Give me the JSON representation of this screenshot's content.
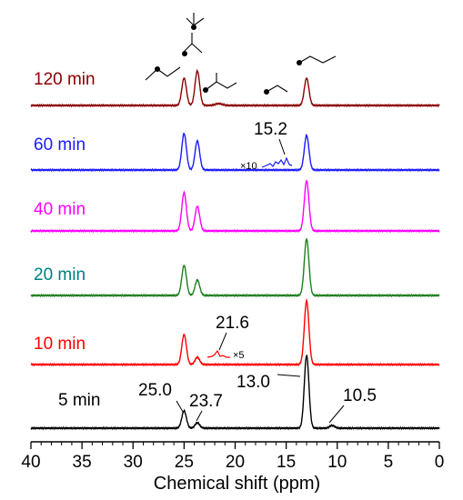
{
  "chart_data": {
    "type": "line",
    "xlabel": "Chemical shift (ppm)",
    "xlim": [
      40,
      0
    ],
    "x_ticks": [
      "40",
      "35",
      "30",
      "25",
      "20",
      "15",
      "10",
      "5",
      "0"
    ],
    "series": [
      {
        "name": "120 min",
        "color": "#8b0000",
        "peaks": [
          {
            "ppm": 25.0,
            "height": 0.3
          },
          {
            "ppm": 23.7,
            "height": 0.38
          },
          {
            "ppm": 21.6,
            "height": 0.02
          },
          {
            "ppm": 13.0,
            "height": 0.3
          }
        ]
      },
      {
        "name": "60 min",
        "color": "#1a1aff",
        "peaks": [
          {
            "ppm": 25.0,
            "height": 0.4
          },
          {
            "ppm": 23.7,
            "height": 0.32
          },
          {
            "ppm": 13.0,
            "height": 0.38
          }
        ],
        "inset": {
          "label": "15.2",
          "multiplier": "×10"
        }
      },
      {
        "name": "40 min",
        "color": "#ff00ff",
        "peaks": [
          {
            "ppm": 25.0,
            "height": 0.42
          },
          {
            "ppm": 23.7,
            "height": 0.27
          },
          {
            "ppm": 13.0,
            "height": 0.55
          }
        ]
      },
      {
        "name": "20 min",
        "color": "#008080",
        "line_color": "#1e7f1e",
        "peaks": [
          {
            "ppm": 25.0,
            "height": 0.33
          },
          {
            "ppm": 23.7,
            "height": 0.17
          },
          {
            "ppm": 13.0,
            "height": 0.62
          }
        ]
      },
      {
        "name": "10 min",
        "color": "#ff0000",
        "peaks": [
          {
            "ppm": 25.0,
            "height": 0.33
          },
          {
            "ppm": 23.7,
            "height": 0.08
          },
          {
            "ppm": 13.0,
            "height": 0.7
          }
        ],
        "inset": {
          "label": "21.6",
          "multiplier": "×5"
        }
      },
      {
        "name": "5 min",
        "color": "#000000",
        "peaks": [
          {
            "ppm": 25.0,
            "height": 0.19
          },
          {
            "ppm": 23.7,
            "height": 0.06
          },
          {
            "ppm": 13.0,
            "height": 0.8
          },
          {
            "ppm": 10.5,
            "height": 0.03
          }
        ],
        "annotations": [
          "25.0",
          "23.7",
          "13.0",
          "10.5"
        ]
      }
    ]
  }
}
